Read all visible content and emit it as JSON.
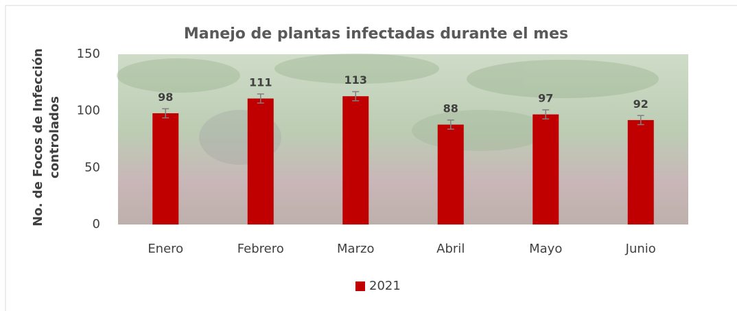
{
  "chart_data": {
    "type": "bar",
    "title": "Manejo de plantas infectadas durante el mes",
    "y_label": "No. de Focos de Infección controlados",
    "categories": [
      "Enero",
      "Febrero",
      "Marzo",
      "Abril",
      "Mayo",
      "Junio"
    ],
    "series": [
      {
        "name": "2021",
        "color": "#c00000",
        "values": [
          98,
          111,
          113,
          88,
          97,
          92
        ],
        "errors": [
          4,
          4,
          4,
          4,
          4,
          4
        ]
      }
    ],
    "ylim": [
      0,
      150
    ],
    "yticks": [
      0,
      50,
      100,
      150
    ],
    "grid": false,
    "legend": "bottom"
  }
}
